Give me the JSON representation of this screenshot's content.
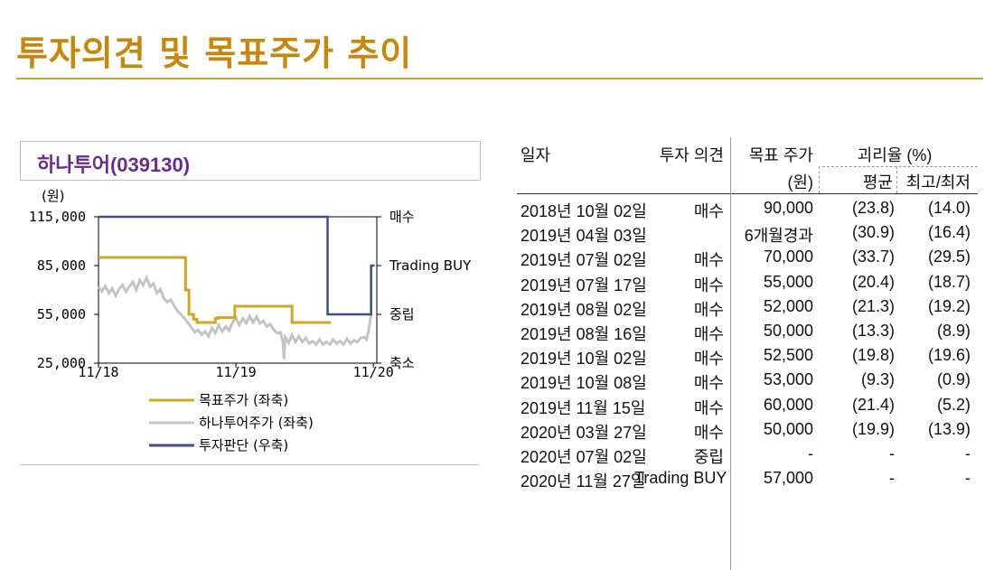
{
  "page": {
    "title": "투자의견 및 목표주가 추이"
  },
  "chart_box": {
    "title": "하나투어(039130)"
  },
  "chart_data": {
    "type": "line",
    "ylabel_unit": "(원)",
    "y_left_ticks": [
      "115,000",
      "85,000",
      "55,000",
      "25,000"
    ],
    "y_left_values": [
      115000,
      85000,
      55000,
      25000
    ],
    "ylim": [
      25000,
      115000
    ],
    "x_ticks": [
      "11/18",
      "11/19",
      "11/20"
    ],
    "x_tick_pos": [
      0,
      12,
      24
    ],
    "x_range": [
      0,
      24.3
    ],
    "y_right_ticks": [
      "매수",
      "Trading BUY",
      "중립",
      "축소"
    ],
    "y_right_values": [
      115000,
      85000,
      55000,
      25000
    ],
    "legend": [
      "목표주가 (좌축)",
      "하나투어주가 (좌축)",
      "투자판단 (우축)"
    ],
    "colors": {
      "target": "#d4a520",
      "price": "#c4c4c4",
      "rating": "#3d4f8f"
    },
    "series": [
      {
        "name": "목표주가 (좌축)",
        "points": [
          [
            0,
            90000
          ],
          [
            7.6,
            90000
          ],
          [
            7.6,
            70000
          ],
          [
            7.9,
            70000
          ],
          [
            7.9,
            55000
          ],
          [
            8.3,
            55000
          ],
          [
            8.3,
            52000
          ],
          [
            8.6,
            52000
          ],
          [
            8.6,
            50000
          ],
          [
            10.2,
            50000
          ],
          [
            10.2,
            52500
          ],
          [
            10.4,
            52500
          ],
          [
            10.4,
            53000
          ],
          [
            11.9,
            53000
          ],
          [
            11.9,
            60000
          ],
          [
            16.9,
            60000
          ],
          [
            16.9,
            50000
          ],
          [
            20.3,
            50000
          ]
        ]
      },
      {
        "name": "하나투어주가 (좌축)",
        "points": [
          [
            0,
            72000
          ],
          [
            0.3,
            69000
          ],
          [
            0.6,
            72500
          ],
          [
            0.9,
            68000
          ],
          [
            1.2,
            71000
          ],
          [
            1.5,
            66500
          ],
          [
            1.8,
            70500
          ],
          [
            2.1,
            73000
          ],
          [
            2.4,
            69000
          ],
          [
            2.7,
            72000
          ],
          [
            3.0,
            75000
          ],
          [
            3.3,
            70000
          ],
          [
            3.6,
            76000
          ],
          [
            3.9,
            73000
          ],
          [
            4.2,
            77500
          ],
          [
            4.5,
            72000
          ],
          [
            4.8,
            74000
          ],
          [
            5.1,
            68000
          ],
          [
            5.4,
            70500
          ],
          [
            5.7,
            65000
          ],
          [
            6.0,
            62500
          ],
          [
            6.3,
            64000
          ],
          [
            6.6,
            60500
          ],
          [
            6.9,
            57000
          ],
          [
            7.2,
            55000
          ],
          [
            7.5,
            52500
          ],
          [
            7.8,
            50000
          ],
          [
            8.1,
            47000
          ],
          [
            8.4,
            44000
          ],
          [
            8.7,
            45500
          ],
          [
            9.0,
            42500
          ],
          [
            9.3,
            44500
          ],
          [
            9.6,
            41500
          ],
          [
            9.9,
            46500
          ],
          [
            10.2,
            43500
          ],
          [
            10.5,
            48500
          ],
          [
            10.8,
            44500
          ],
          [
            11.1,
            47500
          ],
          [
            11.4,
            45000
          ],
          [
            11.7,
            50000
          ],
          [
            12.0,
            53000
          ],
          [
            12.3,
            48500
          ],
          [
            12.6,
            52500
          ],
          [
            12.9,
            49500
          ],
          [
            13.2,
            54000
          ],
          [
            13.5,
            50000
          ],
          [
            13.8,
            53500
          ],
          [
            14.1,
            49500
          ],
          [
            14.4,
            51000
          ],
          [
            14.7,
            47500
          ],
          [
            15.0,
            49000
          ],
          [
            15.3,
            45500
          ],
          [
            15.6,
            43500
          ],
          [
            15.9,
            44000
          ],
          [
            16.1,
            38000
          ],
          [
            16.2,
            27500
          ],
          [
            16.3,
            41000
          ],
          [
            16.6,
            37500
          ],
          [
            16.9,
            42500
          ],
          [
            17.2,
            38000
          ],
          [
            17.5,
            41500
          ],
          [
            17.8,
            38000
          ],
          [
            18.1,
            40500
          ],
          [
            18.4,
            37000
          ],
          [
            18.7,
            38500
          ],
          [
            19.0,
            36500
          ],
          [
            19.3,
            39500
          ],
          [
            19.6,
            36500
          ],
          [
            19.9,
            38000
          ],
          [
            20.2,
            36500
          ],
          [
            20.5,
            39500
          ],
          [
            20.8,
            37000
          ],
          [
            21.1,
            38500
          ],
          [
            21.4,
            36500
          ],
          [
            21.7,
            40000
          ],
          [
            22.0,
            37000
          ],
          [
            22.3,
            39000
          ],
          [
            22.6,
            38000
          ],
          [
            22.9,
            40500
          ],
          [
            23.2,
            41000
          ],
          [
            23.4,
            39500
          ],
          [
            23.6,
            45500
          ],
          [
            23.8,
            55000
          ]
        ]
      },
      {
        "name": "투자판단 (우축)",
        "points": [
          [
            0,
            115000
          ],
          [
            20.0,
            115000
          ],
          [
            20.0,
            55000
          ],
          [
            23.8,
            55000
          ],
          [
            23.8,
            85000
          ],
          [
            24.1,
            85000
          ]
        ]
      }
    ]
  },
  "table": {
    "header": {
      "date": "일자",
      "opinion": "투자 의견",
      "target": "목표 주가",
      "target_unit": "(원)",
      "gap": "괴리율 (%)",
      "avg": "평균",
      "hilo": "최고/최저"
    },
    "rows": [
      {
        "date": "2018년 10월 02일",
        "opinion": "매수",
        "target": "90,000",
        "avg": "(23.8)",
        "hilo": "(14.0)"
      },
      {
        "date": "2019년 04월 03일",
        "opinion": "",
        "target": "6개월경과",
        "avg": "(30.9)",
        "hilo": "(16.4)"
      },
      {
        "date": "2019년 07월 02일",
        "opinion": "매수",
        "target": "70,000",
        "avg": "(33.7)",
        "hilo": "(29.5)"
      },
      {
        "date": "2019년 07월 17일",
        "opinion": "매수",
        "target": "55,000",
        "avg": "(20.4)",
        "hilo": "(18.7)"
      },
      {
        "date": "2019년 08월 02일",
        "opinion": "매수",
        "target": "52,000",
        "avg": "(21.3)",
        "hilo": "(19.2)"
      },
      {
        "date": "2019년 08월 16일",
        "opinion": "매수",
        "target": "50,000",
        "avg": "(13.3)",
        "hilo": "(8.9)"
      },
      {
        "date": "2019년 10월 02일",
        "opinion": "매수",
        "target": "52,500",
        "avg": "(19.8)",
        "hilo": "(19.6)"
      },
      {
        "date": "2019년 10월 08일",
        "opinion": "매수",
        "target": "53,000",
        "avg": "(9.3)",
        "hilo": "(0.9)"
      },
      {
        "date": "2019년 11월 15일",
        "opinion": "매수",
        "target": "60,000",
        "avg": "(21.4)",
        "hilo": "(5.2)"
      },
      {
        "date": "2020년 03월 27일",
        "opinion": "매수",
        "target": "50,000",
        "avg": "(19.9)",
        "hilo": "(13.9)"
      },
      {
        "date": "2020년 07월 02일",
        "opinion": "중립",
        "target": "-",
        "avg": "-",
        "hilo": "-"
      },
      {
        "date": "2020년 11월 27일",
        "opinion": "Trading BUY",
        "target": "57,000",
        "avg": "-",
        "hilo": "-"
      }
    ]
  }
}
